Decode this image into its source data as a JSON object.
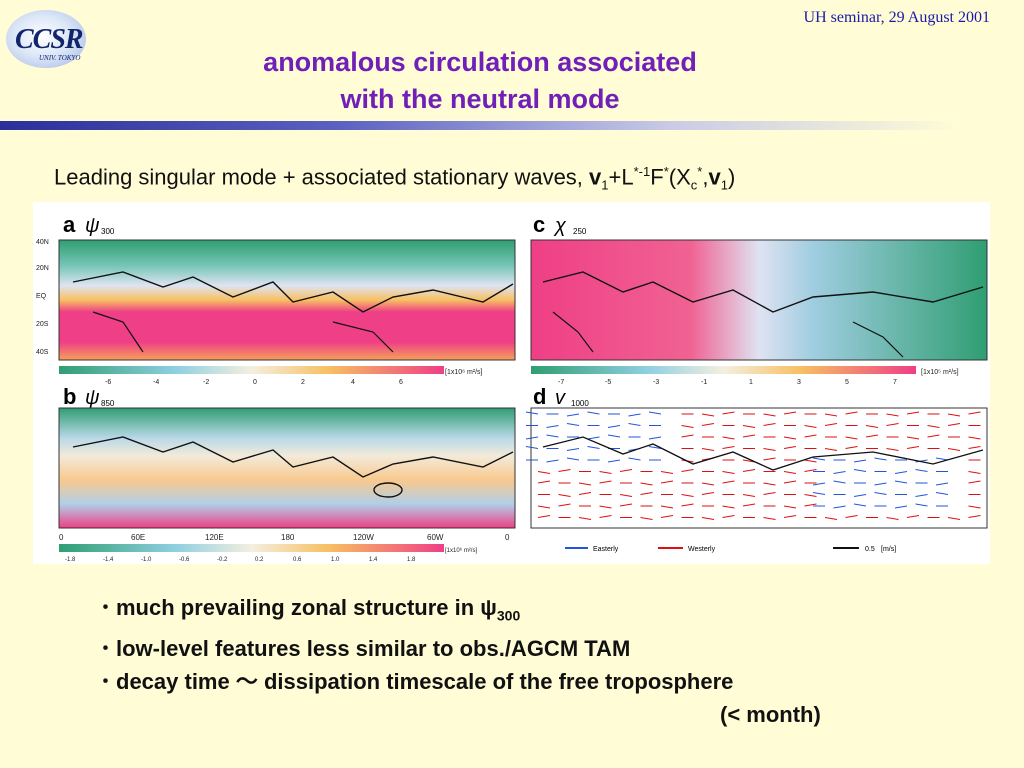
{
  "header": {
    "logo_text": "CCSR",
    "logo_sub": "UNIV. TOKYO",
    "seminar": "UH seminar, 29 August 2001",
    "title_line1": "anomalous circulation associated",
    "title_line2": "with the neutral  mode"
  },
  "subtitle": {
    "lead": "Leading singular mode + associated stationary waves, ",
    "v": "v",
    "sub1": "1",
    "plusL": "+L",
    "sup_star_m1": "*-1",
    "F": "F",
    "sup_star": "*",
    "openX": "(X",
    "sub_c": "c",
    "sup_star2": "*",
    "comma_v": ",",
    "v2": "v",
    "sub1b": "1",
    "close": ")"
  },
  "figure": {
    "panels": [
      {
        "letter": "a",
        "symbol": "ψ",
        "level": "300",
        "colorbar_ticks": [
          "-6",
          "-4",
          "-2",
          "0",
          "2",
          "4",
          "6"
        ],
        "units": "[1x10⁶ m²/s]"
      },
      {
        "letter": "c",
        "symbol": "χ",
        "level": "250",
        "colorbar_ticks": [
          "-7",
          "-5",
          "-3",
          "-1",
          "1",
          "3",
          "5",
          "7"
        ],
        "units": "[1x10⁵ m²/s]"
      },
      {
        "letter": "b",
        "symbol": "ψ",
        "level": "850",
        "colorbar_ticks": [
          "-1.8",
          "-1.4",
          "-1.0",
          "-0.6",
          "-0.2",
          "0.2",
          "0.6",
          "1.0",
          "1.4",
          "1.8"
        ],
        "units": "[1x10⁶ m²/s]"
      },
      {
        "letter": "d",
        "symbol": "v",
        "level": "1000",
        "legend_easterly": "Easterly",
        "legend_westerly": "Westerly",
        "ref_value": "0.5",
        "ref_units": "[m/s]"
      }
    ],
    "lat_labels": [
      "40N",
      "20N",
      "EQ",
      "20S",
      "40S"
    ],
    "lon_labels": [
      "0",
      "60E",
      "120E",
      "180",
      "120W",
      "60W",
      "0"
    ]
  },
  "bullets": [
    {
      "text": "much prevailing zonal structure in ",
      "symbol": "ψ",
      "sub": "300"
    },
    {
      "text": "low-level features less similar to obs./AGCM TAM"
    },
    {
      "text": "decay time ～  dissipation timescale of the free troposphere"
    }
  ],
  "bullet_cont": "(< month)",
  "colors": {
    "title": "#7020b8",
    "seminar": "#1a1aa8",
    "positive": "#ef3f86",
    "negative": "#2f9e72"
  }
}
